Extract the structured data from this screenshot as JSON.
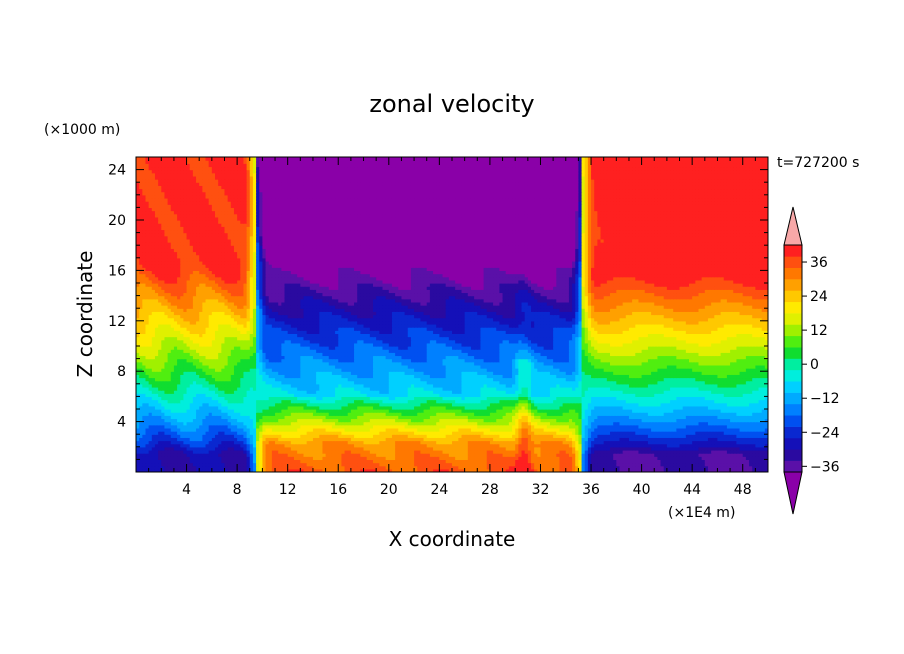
{
  "chart_data": {
    "type": "heatmap",
    "title": "zonal velocity",
    "xlabel": "X coordinate",
    "ylabel": "Z coordinate",
    "x_unit": "(×1E4 m)",
    "y_unit": "(×1000 m)",
    "time_label": "t=727200 s",
    "xlim": [
      0,
      50
    ],
    "ylim": [
      0,
      25
    ],
    "x_ticks": [
      4,
      8,
      12,
      16,
      20,
      24,
      28,
      32,
      36,
      40,
      44,
      48
    ],
    "y_ticks": [
      4,
      8,
      12,
      16,
      20,
      24
    ],
    "colorbar": {
      "range": [
        -42,
        42
      ],
      "step": 4,
      "tick_labels": [
        "36",
        "24",
        "12",
        "0",
        "−12",
        "−24",
        "−36"
      ],
      "tick_values": [
        36,
        24,
        12,
        0,
        -12,
        -24,
        -36
      ],
      "extend": "both",
      "colors": [
        "#8a00a8",
        "#5a10a8",
        "#2a0aa0",
        "#1410b8",
        "#0a28d0",
        "#0050f0",
        "#0080ff",
        "#00aaff",
        "#00d0ff",
        "#00eedd",
        "#00eea0",
        "#10dd30",
        "#50ee10",
        "#a0f000",
        "#e0f000",
        "#ffea00",
        "#ffc800",
        "#ffa000",
        "#ff7800",
        "#ff5010",
        "#ff2020",
        "#f8a8a8"
      ]
    },
    "field_description_values": {
      "left_jet_center_x": 9.5,
      "right_jet_center_x": 35.3,
      "left_upper_max": 40,
      "right_upper_max": 40,
      "middle_upper_min": -42,
      "middle_surface_max": 36
    }
  }
}
